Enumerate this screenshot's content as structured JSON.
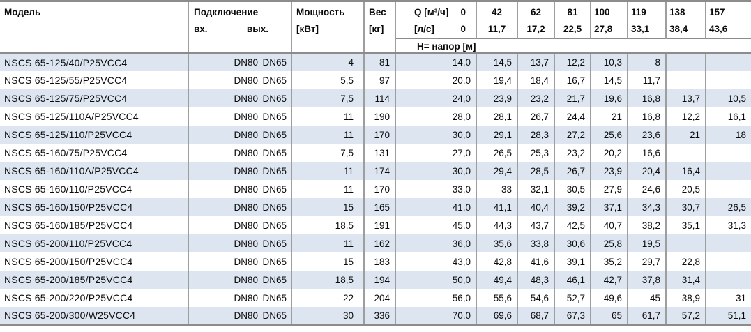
{
  "table": {
    "headers": {
      "model": "Модель",
      "connection": "Подключение",
      "conn_in": "вх.",
      "conn_out": "вых.",
      "power_l1": "Мощность",
      "power_l2": "[кВт]",
      "weight_l1": "Вес",
      "weight_l2": "[кг]",
      "q_label_m3h": "Q [м³/ч]",
      "q_label_ls": "[л/с]",
      "head_row": "Н= напор [м]",
      "flows_m3h": [
        "0",
        "42",
        "62",
        "81",
        "100",
        "119",
        "138",
        "157"
      ],
      "flows_ls": [
        "0",
        "11,7",
        "17,2",
        "22,5",
        "27,8",
        "33,1",
        "38,4",
        "43,6"
      ]
    },
    "rows": [
      {
        "model": "NSCS 65-125/40/P25VCC4",
        "in": "DN80",
        "out": "DN65",
        "power": "4",
        "weight": "81",
        "heads": [
          "14,0",
          "14,5",
          "13,7",
          "12,2",
          "10,3",
          "8",
          "",
          ""
        ]
      },
      {
        "model": "NSCS 65-125/55/P25VCC4",
        "in": "DN80",
        "out": "DN65",
        "power": "5,5",
        "weight": "97",
        "heads": [
          "20,0",
          "19,4",
          "18,4",
          "16,7",
          "14,5",
          "11,7",
          "",
          ""
        ]
      },
      {
        "model": "NSCS 65-125/75/P25VCC4",
        "in": "DN80",
        "out": "DN65",
        "power": "7,5",
        "weight": "114",
        "heads": [
          "24,0",
          "23,9",
          "23,2",
          "21,7",
          "19,6",
          "16,8",
          "13,7",
          "10,5"
        ]
      },
      {
        "model": "NSCS 65-125/110A/P25VCC4",
        "in": "DN80",
        "out": "DN65",
        "power": "11",
        "weight": "190",
        "heads": [
          "28,0",
          "28,1",
          "26,7",
          "24,4",
          "21",
          "16,8",
          "12,2",
          "16,1"
        ]
      },
      {
        "model": "NSCS 65-125/110/P25VCC4",
        "in": "DN80",
        "out": "DN65",
        "power": "11",
        "weight": "170",
        "heads": [
          "30,0",
          "29,1",
          "28,3",
          "27,2",
          "25,6",
          "23,6",
          "21",
          "18"
        ]
      },
      {
        "model": "NSCS 65-160/75/P25VCC4",
        "in": "DN80",
        "out": "DN65",
        "power": "7,5",
        "weight": "131",
        "heads": [
          "27,0",
          "26,5",
          "25,3",
          "23,2",
          "20,2",
          "16,6",
          "",
          ""
        ]
      },
      {
        "model": "NSCS 65-160/110A/P25VCC4",
        "in": "DN80",
        "out": "DN65",
        "power": "11",
        "weight": "174",
        "heads": [
          "30,0",
          "29,4",
          "28,5",
          "26,7",
          "23,9",
          "20,4",
          "16,4",
          ""
        ]
      },
      {
        "model": "NSCS 65-160/110/P25VCC4",
        "in": "DN80",
        "out": "DN65",
        "power": "11",
        "weight": "170",
        "heads": [
          "33,0",
          "33",
          "32,1",
          "30,5",
          "27,9",
          "24,6",
          "20,5",
          ""
        ]
      },
      {
        "model": "NSCS 65-160/150/P25VCC4",
        "in": "DN80",
        "out": "DN65",
        "power": "15",
        "weight": "165",
        "heads": [
          "41,0",
          "41,1",
          "40,4",
          "39,2",
          "37,1",
          "34,3",
          "30,7",
          "26,5"
        ]
      },
      {
        "model": "NSCS 65-160/185/P25VCC4",
        "in": "DN80",
        "out": "DN65",
        "power": "18,5",
        "weight": "191",
        "heads": [
          "45,0",
          "44,3",
          "43,7",
          "42,5",
          "40,7",
          "38,2",
          "35,1",
          "31,3"
        ]
      },
      {
        "model": "NSCS 65-200/110/P25VCC4",
        "in": "DN80",
        "out": "DN65",
        "power": "11",
        "weight": "162",
        "heads": [
          "36,0",
          "35,6",
          "33,8",
          "30,6",
          "25,8",
          "19,5",
          "",
          ""
        ]
      },
      {
        "model": "NSCS 65-200/150/P25VCC4",
        "in": "DN80",
        "out": "DN65",
        "power": "15",
        "weight": "183",
        "heads": [
          "43,0",
          "42,8",
          "41,6",
          "39,1",
          "35,2",
          "29,7",
          "22,8",
          ""
        ]
      },
      {
        "model": "NSCS 65-200/185/P25VCC4",
        "in": "DN80",
        "out": "DN65",
        "power": "18,5",
        "weight": "194",
        "heads": [
          "50,0",
          "49,4",
          "48,3",
          "46,1",
          "42,7",
          "37,8",
          "31,4",
          ""
        ]
      },
      {
        "model": "NSCS 65-200/220/P25VCC4",
        "in": "DN80",
        "out": "DN65",
        "power": "22",
        "weight": "204",
        "heads": [
          "56,0",
          "55,6",
          "54,6",
          "52,7",
          "49,6",
          "45",
          "38,9",
          "31"
        ]
      },
      {
        "model": "NSCS 65-200/300/W25VCC4",
        "in": "DN80",
        "out": "DN65",
        "power": "30",
        "weight": "336",
        "heads": [
          "70,0",
          "69,6",
          "68,7",
          "67,3",
          "65",
          "61,7",
          "57,2",
          "51,1"
        ]
      }
    ],
    "colors": {
      "stripe": "#dce5f0",
      "border_heavy": "#8c8c8c",
      "border_light": "#9e9e9e"
    }
  }
}
